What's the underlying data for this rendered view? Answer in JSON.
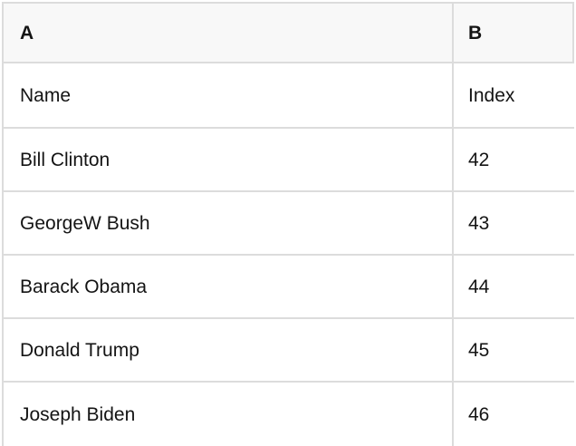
{
  "table": {
    "columns": [
      {
        "id": "A",
        "label": "A"
      },
      {
        "id": "B",
        "label": "B"
      }
    ],
    "rows": [
      {
        "a": "Name",
        "b": "Index"
      },
      {
        "a": "Bill Clinton",
        "b": "42"
      },
      {
        "a": "GeorgeW Bush",
        "b": "43"
      },
      {
        "a": "Barack Obama",
        "b": "44"
      },
      {
        "a": "Donald Trump",
        "b": "45"
      },
      {
        "a": "Joseph Biden",
        "b": "46"
      }
    ],
    "colors": {
      "header_bg": "#f8f8f8",
      "border": "#dcdcdc",
      "text": "#141414"
    }
  }
}
